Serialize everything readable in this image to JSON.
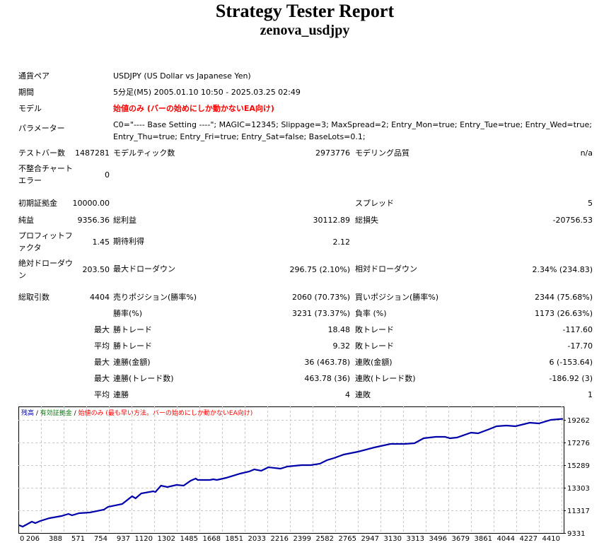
{
  "header": {
    "title": "Strategy Tester Report",
    "subtitle": "zenova_usdjpy"
  },
  "info": {
    "pair_label": "通貨ペア",
    "pair": "USDJPY (US Dollar vs Japanese Yen)",
    "period_label": "期間",
    "period": "5分足(M5) 2005.01.10 10:50 - 2025.03.25 02:49",
    "model_label": "モデル",
    "model": "始値のみ (バーの始めにしか動かないEA向け)",
    "params_label": "パラメーター",
    "params": "C0=\"---- Base Setting ----\"; MAGIC=12345; Slippage=3; MaxSpread=2; Entry_Mon=true; Entry_Tue=true; Entry_Wed=true; Entry_Thu=true; Entry_Fri=true; Entry_Sat=false; BaseLots=0.1;"
  },
  "stats": {
    "bars_label": "テストバー数",
    "bars": "1487281",
    "ticks_label": "モデルティック数",
    "ticks": "2973776",
    "quality_label": "モデリング品質",
    "quality": "n/a",
    "mismatch_label": "不整合チャートエラー",
    "mismatch": "0",
    "deposit_label": "初期証拠金",
    "deposit": "10000.00",
    "spread_label": "スプレッド",
    "spread": "5",
    "net_label": "純益",
    "net": "9356.36",
    "gross_profit_label": "総利益",
    "gross_profit": "30112.89",
    "gross_loss_label": "総損失",
    "gross_loss": "-20756.53",
    "pf_label": "プロフィットファクタ",
    "pf": "1.45",
    "expected_label": "期待利得",
    "expected": "2.12",
    "abs_dd_label": "絶対ドローダウン",
    "abs_dd": "203.50",
    "max_dd_label": "最大ドローダウン",
    "max_dd": "296.75 (2.10%)",
    "rel_dd_label": "相対ドローダウン",
    "rel_dd": "2.34% (234.83)",
    "trades_label": "総取引数",
    "trades": "4404",
    "short_label": "売りポジション(勝率%)",
    "short": "2060 (70.73%)",
    "long_label": "買いポジション(勝率%)",
    "long": "2344 (75.68%)",
    "win_label": "勝率(%)",
    "win": "3231 (73.37%)",
    "loss_label": "負率 (%)",
    "loss": "1173 (26.63%)",
    "max_label": "最大",
    "avg_label": "平均",
    "largest_win_label": "勝トレード",
    "largest_win": "18.48",
    "largest_loss_label": "敗トレード",
    "largest_loss": "-117.60",
    "avg_win_label": "勝トレード",
    "avg_win": "9.32",
    "avg_loss_label": "敗トレード",
    "avg_loss": "-17.70",
    "max_consec_wins_label": "連勝(金額)",
    "max_consec_wins": "36 (463.78)",
    "max_consec_losses_label": "連敗(金額)",
    "max_consec_losses": "6 (-153.64)",
    "max_consec_profit_label": "連勝(トレード数)",
    "max_consec_profit": "463.78 (36)",
    "max_consec_loss_label": "連敗(トレード数)",
    "max_consec_loss": "-186.92 (3)",
    "avg_consec_wins_label": "連勝",
    "avg_consec_wins": "4",
    "avg_consec_losses_label": "連敗",
    "avg_consec_losses": "1"
  },
  "chart_data": {
    "type": "line",
    "legend": {
      "balance": "残高",
      "sep1": " / ",
      "equity": "有効証拠金",
      "sep2": " / ",
      "model": "始値のみ (最も早い方法。バーの始めにしか動かないEA向け)"
    },
    "colors": {
      "balance": "#0000aa",
      "equity": "#008000",
      "model": "#ff0000",
      "grid": "#c8c8c8"
    },
    "x_ticks": [
      "0",
      "206",
      "388",
      "571",
      "754",
      "937",
      "1120",
      "1302",
      "1485",
      "1668",
      "1851",
      "2033",
      "2216",
      "2399",
      "2582",
      "2765",
      "2947",
      "3130",
      "3313",
      "3496",
      "3679",
      "3861",
      "4044",
      "4227",
      "4410"
    ],
    "y_ticks": [
      "19262",
      "17276",
      "15289",
      "13303",
      "11317",
      "9331"
    ],
    "xlim": [
      0,
      4404
    ],
    "ylim": [
      9331,
      20100
    ],
    "grid": true,
    "series": [
      {
        "x": [
          0,
          29,
          103,
          131,
          171,
          246,
          343,
          400,
          429,
          486,
          572,
          686,
          721,
          835,
          915,
          943,
          989,
          1086,
          1104,
          1149,
          1201,
          1275,
          1332,
          1390,
          1430,
          1447,
          1544,
          1573,
          1601,
          1676,
          1790,
          1864,
          1904,
          1961,
          2019,
          2116,
          2173,
          2288,
          2362,
          2436,
          2493,
          2550,
          2630,
          2745,
          2876,
          3007,
          3121,
          3202,
          3276,
          3373,
          3448,
          3488,
          3545,
          3660,
          3717,
          3809,
          3866,
          3946,
          4020,
          4135,
          4209,
          4306,
          4404
        ],
        "y": [
          10014,
          9890,
          10324,
          10200,
          10386,
          10634,
          10820,
          11007,
          10883,
          11069,
          11131,
          11379,
          11627,
          11875,
          12558,
          12372,
          12806,
          12993,
          12931,
          13489,
          13365,
          13551,
          13489,
          13924,
          14110,
          13986,
          13986,
          14048,
          13986,
          14172,
          14545,
          14731,
          14917,
          14793,
          15103,
          14979,
          15165,
          15289,
          15289,
          15413,
          15724,
          15910,
          16221,
          16469,
          16841,
          17152,
          17152,
          17214,
          17648,
          17772,
          17772,
          17648,
          17710,
          18145,
          18083,
          18455,
          18703,
          18765,
          18703,
          19014,
          18952,
          19262,
          19356
        ]
      }
    ]
  }
}
